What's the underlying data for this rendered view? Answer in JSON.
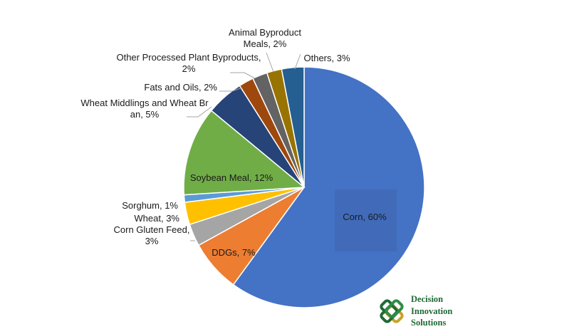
{
  "chart_data": {
    "type": "pie",
    "title": "",
    "slices": [
      {
        "label": "Corn, 60%",
        "category": "Corn",
        "value": 60,
        "color": "#4472c4"
      },
      {
        "label": "DDGs, 7%",
        "category": "DDGs",
        "value": 7,
        "color": "#ed7d31"
      },
      {
        "label": "Corn Gluten Feed, 3%",
        "category": "Corn Gluten Feed",
        "value": 3,
        "color": "#a5a5a5"
      },
      {
        "label": "Wheat, 3%",
        "category": "Wheat",
        "value": 3,
        "color": "#ffc000"
      },
      {
        "label": "Sorghum, 1%",
        "category": "Sorghum",
        "value": 1,
        "color": "#5b9bd5"
      },
      {
        "label": "Soybean Meal, 12%",
        "category": "Soybean Meal",
        "value": 12,
        "color": "#70ad47"
      },
      {
        "label": "Wheat Middlings and Wheat Bran, 5%",
        "category": "Wheat Middlings and Wheat Bran",
        "value": 5,
        "color": "#264478"
      },
      {
        "label": "Fats and Oils, 2%",
        "category": "Fats and Oils",
        "value": 2,
        "color": "#9e480e"
      },
      {
        "label": "Other Processed Plant Byproducts, 2%",
        "category": "Other Processed Plant Byproducts",
        "value": 2,
        "color": "#636363"
      },
      {
        "label": "Animal Byproduct Meals, 2%",
        "category": "Animal Byproduct Meals",
        "value": 2,
        "color": "#997300"
      },
      {
        "label": "Others, 3%",
        "category": "Others",
        "value": 3,
        "color": "#255e91"
      }
    ],
    "start_angle": "12 o'clock",
    "direction": "clockwise",
    "legend": "none"
  },
  "logo": {
    "line1": "Decision",
    "line2": "Innovation",
    "line3": "Solutions",
    "color": "#1f6a35",
    "accent": "#c9a227",
    "icon": "interlocking-knot-logo"
  }
}
